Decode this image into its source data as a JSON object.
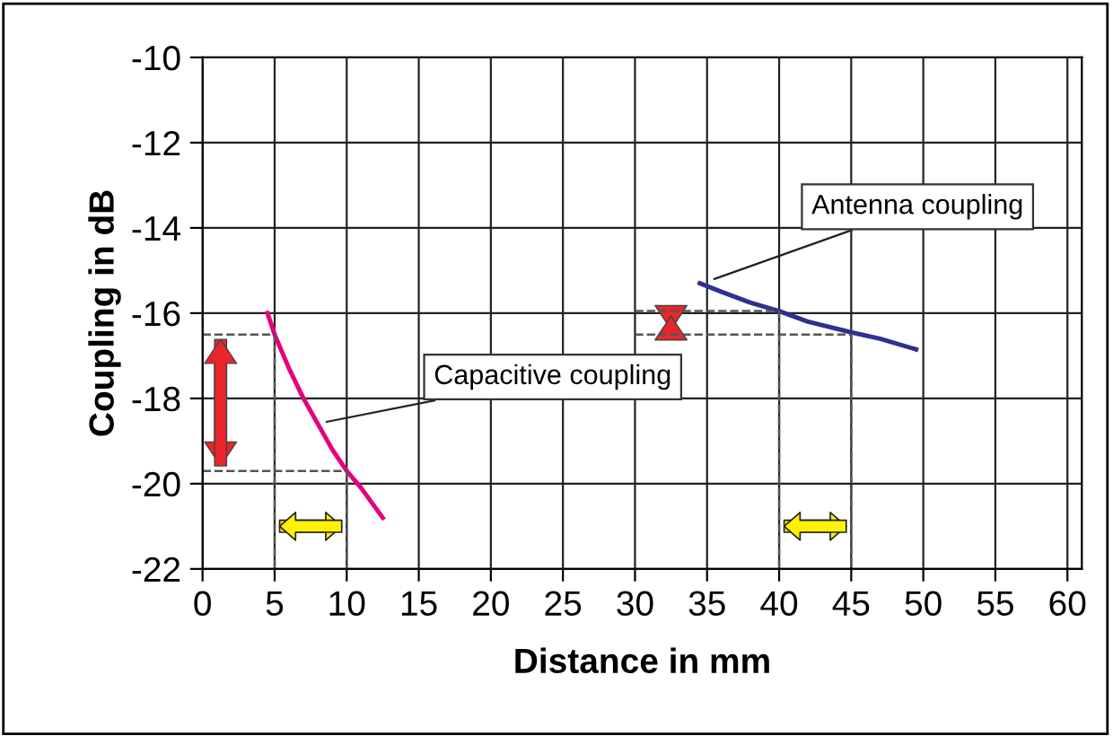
{
  "chart_data": {
    "type": "line",
    "xlabel": "Distance in mm",
    "ylabel": "Coupling in dB",
    "xlim": [
      0,
      61
    ],
    "xticks": [
      0,
      5,
      10,
      15,
      20,
      25,
      30,
      35,
      40,
      45,
      50,
      55,
      60
    ],
    "ylim": [
      -22,
      -10
    ],
    "yticks": [
      -22,
      -20,
      -18,
      -16,
      -14,
      -12,
      -10
    ],
    "grid": true,
    "legend": false,
    "marker": "none",
    "series": [
      {
        "color": "#e6007e",
        "line_style": "solid",
        "x": [
          4.5,
          5,
          6,
          7,
          8,
          9,
          10,
          11,
          12.5
        ],
        "values": [
          -16.0,
          -16.5,
          -17.3,
          -18.0,
          -18.6,
          -19.2,
          -19.7,
          -20.1,
          -20.8
        ]
      },
      {
        "color": "#2e3192",
        "line_style": "solid",
        "x": [
          34.5,
          36,
          38,
          40,
          42,
          45,
          47,
          49.5
        ],
        "values": [
          -15.3,
          -15.5,
          -15.75,
          -15.95,
          -16.2,
          -16.45,
          -16.6,
          -16.85
        ]
      },
      {
        "color": "#555555",
        "line_style": "dashed",
        "x": [
          0,
          5,
          5
        ],
        "values": [
          -16.5,
          -16.5,
          -22
        ]
      },
      {
        "color": "#555555",
        "line_style": "dashed",
        "x": [
          0,
          10,
          10
        ],
        "values": [
          -19.7,
          -19.7,
          -22
        ]
      },
      {
        "color": "#555555",
        "line_style": "dashed",
        "x": [
          30,
          40,
          40
        ],
        "values": [
          -15.95,
          -15.95,
          -22
        ]
      },
      {
        "color": "#555555",
        "line_style": "dashed",
        "x": [
          30,
          45,
          45
        ],
        "values": [
          -16.5,
          -16.5,
          -22
        ]
      }
    ],
    "annotations": [
      {
        "text": "Capacitive coupling",
        "x": 8.6,
        "y": -18.55
      },
      {
        "text": "Antenna coupling",
        "x": 35.5,
        "y": -15.2
      }
    ]
  }
}
